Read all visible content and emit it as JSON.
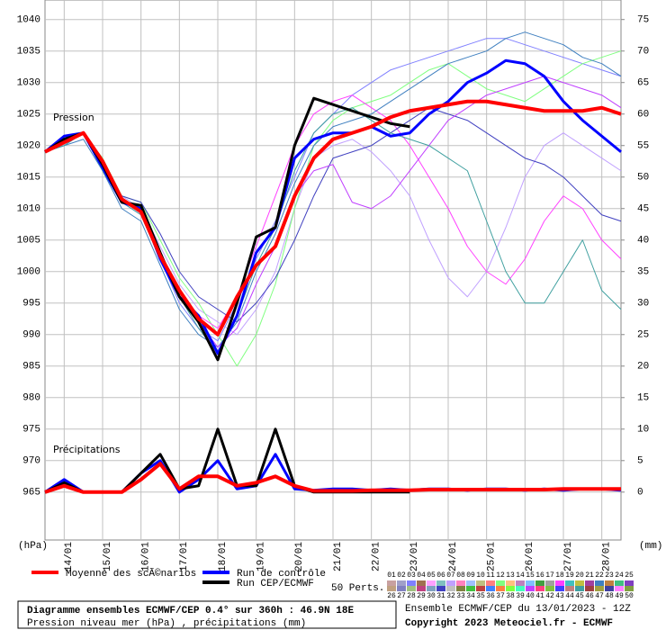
{
  "chart_data": {
    "type": "line",
    "pressure_label": "Pression",
    "precip_label": "Précipitations",
    "y_unit": "(hPa)",
    "y2_unit": "(mm)",
    "x": [
      0,
      12,
      24,
      36,
      48,
      60,
      72,
      84,
      96,
      108,
      120,
      132,
      144,
      156,
      168,
      180,
      192,
      204,
      216,
      228,
      240,
      252,
      264,
      276,
      288,
      300,
      312,
      324,
      336,
      348,
      360
    ],
    "xlim": [
      0,
      360
    ],
    "xticks": [
      {
        "value": 12,
        "label": "14/01"
      },
      {
        "value": 36,
        "label": "15/01"
      },
      {
        "value": 60,
        "label": "16/01"
      },
      {
        "value": 84,
        "label": "17/01"
      },
      {
        "value": 108,
        "label": "18/01"
      },
      {
        "value": 132,
        "label": "19/01"
      },
      {
        "value": 156,
        "label": "20/01"
      },
      {
        "value": 180,
        "label": "21/01"
      },
      {
        "value": 204,
        "label": "22/01"
      },
      {
        "value": 228,
        "label": "23/01"
      },
      {
        "value": 252,
        "label": "24/01"
      },
      {
        "value": 276,
        "label": "25/01"
      },
      {
        "value": 300,
        "label": "26/01"
      },
      {
        "value": 324,
        "label": "27/01"
      },
      {
        "value": 348,
        "label": "28/01"
      }
    ],
    "ylim": [
      957.4,
      1043.1
    ],
    "yticks": [
      965,
      970,
      975,
      980,
      985,
      990,
      995,
      1000,
      1005,
      1010,
      1015,
      1020,
      1025,
      1030,
      1035,
      1040
    ],
    "y2lim": [
      -7.6,
      78.1
    ],
    "y2ticks": [
      0,
      5,
      10,
      15,
      20,
      25,
      30,
      35,
      40,
      45,
      50,
      55,
      60,
      65,
      70,
      75
    ],
    "grid": true,
    "series": [
      {
        "name": "Moyenne des scÃ©narios",
        "color": "#ff0000",
        "values": [
          1019,
          1020.5,
          1022,
          1017.5,
          1011.5,
          1009.5,
          1002.5,
          997,
          992.5,
          990,
          996,
          1001,
          1004,
          1012,
          1018,
          1021,
          1022,
          1023,
          1024.5,
          1025.5,
          1026,
          1026.5,
          1027,
          1027,
          1026.5,
          1026,
          1025.5,
          1025.5,
          1025.5,
          1026,
          1025
        ],
        "precip": [
          0,
          1,
          0,
          0,
          0,
          2,
          4.5,
          0.5,
          2.5,
          2.5,
          1,
          1.5,
          2.5,
          1,
          0.2,
          0.2,
          0.2,
          0.3,
          0.3,
          0.3,
          0.4,
          0.4,
          0.4,
          0.4,
          0.4,
          0.4,
          0.4,
          0.5,
          0.5,
          0.5,
          0.5
        ]
      },
      {
        "name": "Run de contrôle",
        "color": "#0000ff",
        "values": [
          1019,
          1021.5,
          1022,
          1016.5,
          1011,
          1010,
          1002,
          996,
          993,
          987,
          993,
          1003,
          1007,
          1018,
          1021,
          1022,
          1022,
          1023,
          1021.5,
          1022,
          1025,
          1027,
          1030,
          1031.5,
          1033.5,
          1033,
          1031,
          1027,
          1024,
          1021.5,
          1019
        ],
        "precip": [
          0,
          2,
          0,
          0,
          0,
          3,
          5,
          0,
          2,
          5,
          0.5,
          1,
          6,
          0.5,
          0.3,
          0.5,
          0.5,
          0.3,
          0.5,
          0.3,
          0.5,
          0.5,
          0.3,
          0.5,
          0.5,
          0.3,
          0.5,
          0.3,
          0.5,
          0.5,
          0.3
        ]
      },
      {
        "name": "Run CEP/ECMWF",
        "color": "#000000",
        "values": [
          1019,
          1021,
          1022,
          1017,
          1011,
          1010.5,
          1003,
          996,
          992,
          986,
          995,
          1005.5,
          1007,
          1020,
          1027.5,
          1026.5,
          1025.5,
          1024.5,
          1023.5,
          1023,
          null,
          null,
          null,
          null,
          null,
          null,
          null,
          null,
          null,
          null,
          null
        ],
        "precip": [
          0,
          1.5,
          0,
          0,
          0,
          3,
          6,
          0.5,
          1,
          10,
          1,
          1,
          10,
          1,
          0,
          0,
          0,
          0,
          0,
          0,
          null,
          null,
          null,
          null,
          null,
          null,
          null,
          null,
          null,
          null,
          null
        ]
      }
    ],
    "members_label": "50 Perts.",
    "members": [
      {
        "name": "01",
        "color": "#c8a0a0"
      },
      {
        "name": "02",
        "color": "#a0a0c8"
      },
      {
        "name": "03",
        "color": "#8080ff",
        "values": [
          1019,
          1021,
          1022,
          1016,
          1011,
          1009,
          1002,
          995,
          991,
          989,
          995,
          1002,
          1008,
          1015,
          1022,
          1025,
          1028,
          1030,
          1032,
          1033,
          1034,
          1035,
          1036,
          1037,
          1037,
          1036,
          1035,
          1034,
          1033,
          1032,
          1031
        ]
      },
      {
        "name": "04",
        "color": "#a07050"
      },
      {
        "name": "05",
        "color": "#ffa0ff"
      },
      {
        "name": "06",
        "color": "#80c0c0"
      },
      {
        "name": "07",
        "color": "#c0a0ff",
        "values": [
          1019,
          1020,
          1022,
          1017,
          1012,
          1010,
          1004,
          998,
          994,
          992,
          990,
          994,
          1000,
          1010,
          1018,
          1020,
          1021,
          1019,
          1016,
          1012,
          1005,
          999,
          996,
          1000,
          1007,
          1015,
          1020,
          1022,
          1020,
          1018,
          1016
        ]
      },
      {
        "name": "08",
        "color": "#ff80c0"
      },
      {
        "name": "09",
        "color": "#a0c0ff"
      },
      {
        "name": "10",
        "color": "#c0c080"
      },
      {
        "name": "11",
        "color": "#ff8080"
      },
      {
        "name": "12",
        "color": "#80ff80",
        "values": [
          1019,
          1021,
          1022,
          1018,
          1012,
          1011,
          1005,
          999,
          995,
          990,
          985,
          990,
          998,
          1010,
          1020,
          1024,
          1026,
          1027,
          1028,
          1030,
          1032,
          1033,
          1031,
          1029,
          1028,
          1027,
          1029,
          1031,
          1033,
          1034,
          1035
        ]
      },
      {
        "name": "13",
        "color": "#ffc080"
      },
      {
        "name": "14",
        "color": "#c080c0"
      },
      {
        "name": "15",
        "color": "#80c0ff"
      },
      {
        "name": "16",
        "color": "#40a040"
      },
      {
        "name": "17",
        "color": "#a0a0a0"
      },
      {
        "name": "18",
        "color": "#ff40ff",
        "values": [
          1019,
          1021,
          1022,
          1017,
          1011,
          1010,
          1003,
          997,
          993,
          991,
          996,
          1004,
          1012,
          1020,
          1025,
          1027,
          1028,
          1026,
          1024,
          1020,
          1015,
          1010,
          1004,
          1000,
          998,
          1002,
          1008,
          1012,
          1010,
          1005,
          1002
        ]
      },
      {
        "name": "19",
        "color": "#40c0c0"
      },
      {
        "name": "20",
        "color": "#c0c040"
      },
      {
        "name": "21",
        "color": "#a040a0"
      },
      {
        "name": "22",
        "color": "#4080c0",
        "values": [
          1019,
          1020,
          1021,
          1016,
          1010,
          1008,
          1001,
          994,
          990,
          988,
          992,
          1000,
          1006,
          1014,
          1020,
          1023,
          1024,
          1025,
          1027,
          1029,
          1031,
          1033,
          1034,
          1035,
          1037,
          1038,
          1037,
          1036,
          1034,
          1033,
          1031
        ]
      },
      {
        "name": "23",
        "color": "#c08040"
      },
      {
        "name": "24",
        "color": "#40c080"
      },
      {
        "name": "25",
        "color": "#8040c0"
      },
      {
        "name": "26",
        "color": "#c0a080"
      },
      {
        "name": "27",
        "color": "#8080c0"
      },
      {
        "name": "28",
        "color": "#a0c080"
      },
      {
        "name": "29",
        "color": "#c04080"
      },
      {
        "name": "30",
        "color": "#80a0c0"
      },
      {
        "name": "31",
        "color": "#4040c0",
        "values": [
          1019,
          1021,
          1022,
          1017,
          1012,
          1011,
          1006,
          1000,
          996,
          994,
          992,
          995,
          999,
          1005,
          1012,
          1018,
          1019,
          1020,
          1022,
          1024,
          1026,
          1025,
          1024,
          1022,
          1020,
          1018,
          1017,
          1015,
          1012,
          1009,
          1008
        ]
      },
      {
        "name": "32",
        "color": "#c0c0c0"
      },
      {
        "name": "33",
        "color": "#808040"
      },
      {
        "name": "34",
        "color": "#40c040"
      },
      {
        "name": "35",
        "color": "#c04040"
      },
      {
        "name": "36",
        "color": "#4080ff"
      },
      {
        "name": "37",
        "color": "#ff8040"
      },
      {
        "name": "38",
        "color": "#80ff40"
      },
      {
        "name": "39",
        "color": "#40ffc0"
      },
      {
        "name": "40",
        "color": "#c040ff",
        "values": [
          1019,
          1021,
          1022,
          1017,
          1011,
          1010,
          1003,
          996,
          992,
          988,
          991,
          998,
          1004,
          1012,
          1016,
          1017,
          1011,
          1010,
          1012,
          1016,
          1020,
          1024,
          1026,
          1028,
          1029,
          1030,
          1031,
          1030,
          1029,
          1028,
          1026
        ]
      },
      {
        "name": "41",
        "color": "#ff4080"
      },
      {
        "name": "42",
        "color": "#80c040"
      },
      {
        "name": "43",
        "color": "#4040ff"
      },
      {
        "name": "44",
        "color": "#c08080"
      },
      {
        "name": "45",
        "color": "#40a0a0",
        "values": [
          1019,
          1020,
          1022,
          1016,
          1011,
          1009,
          1002,
          996,
          991,
          987,
          993,
          1001,
          1007,
          1016,
          1022,
          1025,
          1026,
          1024,
          1022,
          1021,
          1020,
          1018,
          1016,
          1008,
          1000,
          995,
          995,
          1000,
          1005,
          997,
          994
        ]
      },
      {
        "name": "46",
        "color": "#a04040"
      },
      {
        "name": "47",
        "color": "#a0a040"
      },
      {
        "name": "48",
        "color": "#4040a0"
      },
      {
        "name": "49",
        "color": "#ff80ff"
      },
      {
        "name": "50",
        "color": "#80a040"
      }
    ],
    "title": "Diagramme ensembles ECMWF/CEP 0.4° sur 360h : 46.9N 18E",
    "subtitle": "Pression niveau mer (hPa) , précipitations (mm)",
    "run_info": "Ensemble ECMWF/CEP du 13/01/2023 - 12Z",
    "copyright": "Copyright 2023 Meteociel.fr - ECMWF"
  }
}
